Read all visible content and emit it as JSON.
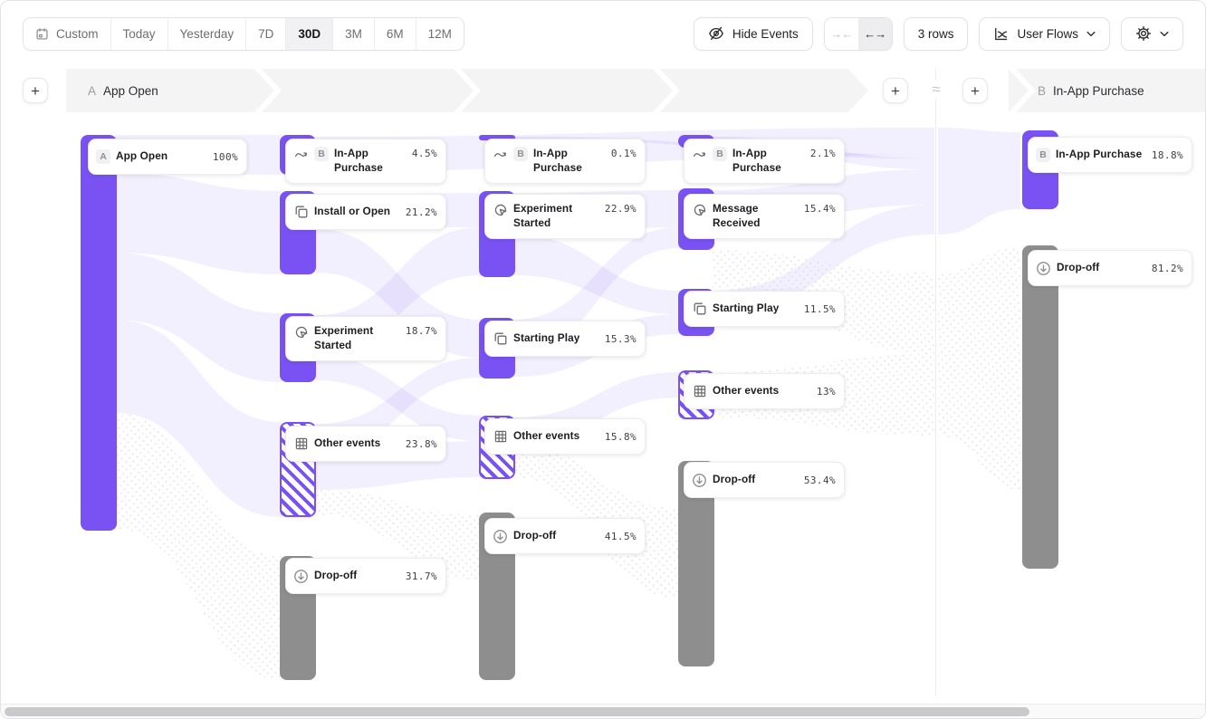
{
  "toolbar": {
    "date_ranges": [
      {
        "label": "Custom",
        "icon": "calendar-icon",
        "selected": false
      },
      {
        "label": "Today",
        "selected": false
      },
      {
        "label": "Yesterday",
        "selected": false
      },
      {
        "label": "7D",
        "selected": false
      },
      {
        "label": "30D",
        "selected": true
      },
      {
        "label": "3M",
        "selected": false
      },
      {
        "label": "6M",
        "selected": false
      },
      {
        "label": "12M",
        "selected": false
      }
    ],
    "hide_events_label": "Hide Events",
    "collapse_symbol": "→←",
    "expand_symbol": "←→",
    "rows_label": "3 rows",
    "view_label": "User Flows"
  },
  "header": {
    "add_symbol": "+",
    "start_badge": "A",
    "start_label": "App Open",
    "approx_symbol": "≈",
    "end_badge": "B",
    "end_label": "In-App Purchase"
  },
  "flows": {
    "columns": [
      {
        "nodes": [
          {
            "name": "App Open",
            "badge": "A",
            "percent": "100%",
            "type": "event"
          }
        ]
      },
      {
        "nodes": [
          {
            "name": "In-App Purchase",
            "badge": "B",
            "percent": "4.5%",
            "type": "terminal",
            "icon": "squiggle-arrow-icon"
          },
          {
            "name": "Install or Open",
            "percent": "21.2%",
            "type": "event",
            "icon": "copy-icon"
          },
          {
            "name": "Experiment Started",
            "percent": "18.7%",
            "type": "event",
            "icon": "pointer-icon"
          },
          {
            "name": "Other events",
            "percent": "23.8%",
            "type": "other",
            "icon": "grid-icon"
          },
          {
            "name": "Drop-off",
            "percent": "31.7%",
            "type": "dropoff",
            "icon": "arrow-down-circle-icon"
          }
        ]
      },
      {
        "nodes": [
          {
            "name": "In-App Purchase",
            "badge": "B",
            "percent": "0.1%",
            "type": "terminal",
            "icon": "squiggle-arrow-icon"
          },
          {
            "name": "Experiment Started",
            "percent": "22.9%",
            "type": "event",
            "icon": "pointer-icon"
          },
          {
            "name": "Starting Play",
            "percent": "15.3%",
            "type": "event",
            "icon": "copy-icon"
          },
          {
            "name": "Other events",
            "percent": "15.8%",
            "type": "other",
            "icon": "grid-icon"
          },
          {
            "name": "Drop-off",
            "percent": "41.5%",
            "type": "dropoff",
            "icon": "arrow-down-circle-icon"
          }
        ]
      },
      {
        "nodes": [
          {
            "name": "In-App Purchase",
            "badge": "B",
            "percent": "2.1%",
            "type": "terminal",
            "icon": "squiggle-arrow-icon"
          },
          {
            "name": "Message Received",
            "percent": "15.4%",
            "type": "event",
            "icon": "pointer-icon"
          },
          {
            "name": "Starting Play",
            "percent": "11.5%",
            "type": "event",
            "icon": "copy-icon"
          },
          {
            "name": "Other events",
            "percent": "13%",
            "type": "other",
            "icon": "grid-icon"
          },
          {
            "name": "Drop-off",
            "percent": "53.4%",
            "type": "dropoff",
            "icon": "arrow-down-circle-icon"
          }
        ]
      },
      {
        "nodes": [
          {
            "name": "In-App Purchase",
            "badge": "B",
            "percent": "18.8%",
            "type": "event"
          },
          {
            "name": "Drop-off",
            "percent": "81.2%",
            "type": "dropoff",
            "icon": "arrow-down-circle-icon"
          }
        ]
      }
    ]
  },
  "colors": {
    "purple": "#7a52f4",
    "dropoff_gray": "#8e8e8e",
    "ribbon_lavender": "#ece7fb",
    "band_gray": "#f4f4f5"
  }
}
